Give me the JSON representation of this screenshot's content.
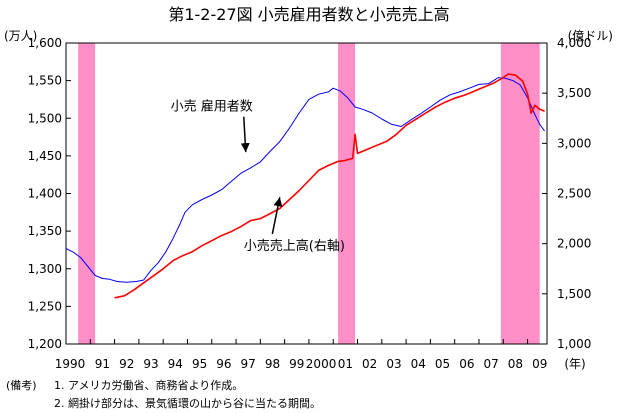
{
  "chart_data": {
    "type": "line",
    "title": "第1-2-27図 小売雇用者数と小売売上高",
    "left_unit": "(万人)",
    "right_unit": "(億ドル)",
    "year_unit": "(年)",
    "x_labels": [
      "1990",
      "91",
      "92",
      "93",
      "94",
      "95",
      "96",
      "97",
      "98",
      "99",
      "2000",
      "01",
      "02",
      "03",
      "04",
      "05",
      "06",
      "07",
      "08",
      "09"
    ],
    "x_range": [
      1990,
      2009.8
    ],
    "y_left": {
      "min": 1200,
      "max": 1600,
      "ticks": [
        "1,200",
        "1,250",
        "1,300",
        "1,350",
        "1,400",
        "1,450",
        "1,500",
        "1,550",
        "1,600"
      ]
    },
    "y_right": {
      "min": 1000,
      "max": 4000,
      "ticks": [
        "1,000",
        "1,500",
        "2,000",
        "2,500",
        "3,000",
        "3,500",
        "4,000"
      ]
    },
    "recessions": [
      [
        1990.5,
        1991.2
      ],
      [
        2001.2,
        2001.9
      ],
      [
        2007.9,
        2009.5
      ]
    ],
    "series": [
      {
        "name": "小売 雇用者数",
        "axis": "left",
        "color": "#0000ff",
        "points": [
          [
            1990.0,
            1327
          ],
          [
            1990.3,
            1322
          ],
          [
            1990.6,
            1315
          ],
          [
            1990.9,
            1303
          ],
          [
            1991.2,
            1291
          ],
          [
            1991.5,
            1287
          ],
          [
            1991.8,
            1286
          ],
          [
            1992.1,
            1283
          ],
          [
            1992.5,
            1282
          ],
          [
            1992.9,
            1283
          ],
          [
            1993.2,
            1285
          ],
          [
            1993.5,
            1298
          ],
          [
            1993.8,
            1308
          ],
          [
            1994.1,
            1322
          ],
          [
            1994.4,
            1340
          ],
          [
            1994.7,
            1360
          ],
          [
            1994.9,
            1375
          ],
          [
            1995.2,
            1385
          ],
          [
            1995.6,
            1392
          ],
          [
            1996.0,
            1398
          ],
          [
            1996.4,
            1405
          ],
          [
            1996.8,
            1416
          ],
          [
            1997.2,
            1427
          ],
          [
            1997.6,
            1434
          ],
          [
            1998.0,
            1442
          ],
          [
            1998.4,
            1456
          ],
          [
            1998.8,
            1469
          ],
          [
            1999.2,
            1487
          ],
          [
            1999.6,
            1507
          ],
          [
            2000.0,
            1525
          ],
          [
            2000.4,
            1532
          ],
          [
            2000.8,
            1535
          ],
          [
            2001.0,
            1540
          ],
          [
            2001.3,
            1536
          ],
          [
            2001.6,
            1527
          ],
          [
            2001.9,
            1515
          ],
          [
            2002.2,
            1512
          ],
          [
            2002.6,
            1507
          ],
          [
            2003.0,
            1499
          ],
          [
            2003.4,
            1492
          ],
          [
            2003.8,
            1489
          ],
          [
            2004.2,
            1498
          ],
          [
            2004.6,
            1506
          ],
          [
            2005.0,
            1515
          ],
          [
            2005.4,
            1524
          ],
          [
            2005.8,
            1531
          ],
          [
            2006.2,
            1535
          ],
          [
            2006.6,
            1540
          ],
          [
            2007.0,
            1545
          ],
          [
            2007.4,
            1546
          ],
          [
            2007.8,
            1554
          ],
          [
            2008.1,
            1553
          ],
          [
            2008.4,
            1550
          ],
          [
            2008.7,
            1544
          ],
          [
            2009.0,
            1527
          ],
          [
            2009.3,
            1505
          ],
          [
            2009.5,
            1492
          ],
          [
            2009.7,
            1483
          ]
        ]
      },
      {
        "name": "小売売上高(右軸)",
        "axis": "right",
        "color": "#ff0000",
        "points": [
          [
            1992.0,
            1460
          ],
          [
            1992.4,
            1480
          ],
          [
            1992.8,
            1540
          ],
          [
            1993.2,
            1610
          ],
          [
            1993.6,
            1680
          ],
          [
            1994.0,
            1750
          ],
          [
            1994.4,
            1830
          ],
          [
            1994.8,
            1880
          ],
          [
            1995.2,
            1920
          ],
          [
            1995.6,
            1980
          ],
          [
            1996.0,
            2030
          ],
          [
            1996.4,
            2080
          ],
          [
            1996.8,
            2120
          ],
          [
            1997.2,
            2170
          ],
          [
            1997.6,
            2230
          ],
          [
            1998.0,
            2250
          ],
          [
            1998.4,
            2300
          ],
          [
            1998.8,
            2350
          ],
          [
            1999.2,
            2440
          ],
          [
            1999.6,
            2530
          ],
          [
            2000.0,
            2630
          ],
          [
            2000.4,
            2730
          ],
          [
            2000.8,
            2780
          ],
          [
            2001.2,
            2820
          ],
          [
            2001.5,
            2830
          ],
          [
            2001.8,
            2850
          ],
          [
            2001.9,
            3090
          ],
          [
            2002.0,
            2900
          ],
          [
            2002.4,
            2940
          ],
          [
            2002.8,
            2980
          ],
          [
            2003.2,
            3020
          ],
          [
            2003.6,
            3090
          ],
          [
            2004.0,
            3180
          ],
          [
            2004.4,
            3240
          ],
          [
            2004.8,
            3300
          ],
          [
            2005.2,
            3360
          ],
          [
            2005.6,
            3410
          ],
          [
            2006.0,
            3450
          ],
          [
            2006.4,
            3480
          ],
          [
            2006.8,
            3520
          ],
          [
            2007.2,
            3560
          ],
          [
            2007.6,
            3600
          ],
          [
            2007.9,
            3640
          ],
          [
            2008.2,
            3690
          ],
          [
            2008.5,
            3680
          ],
          [
            2008.8,
            3620
          ],
          [
            2009.0,
            3490
          ],
          [
            2009.15,
            3300
          ],
          [
            2009.3,
            3380
          ],
          [
            2009.5,
            3340
          ],
          [
            2009.7,
            3320
          ]
        ]
      }
    ],
    "annotations": [
      {
        "text": "小売 雇用者数",
        "label_x": 1996.0,
        "label_y_left": 1510,
        "arrow_to_x": 1997.4,
        "arrow_to_y_left": 1455
      },
      {
        "text": "小売売上高(右軸)",
        "label_x": 1999.4,
        "label_y_left": 1325,
        "arrow_to_x": 1998.8,
        "arrow_to_y_left": 1395
      }
    ]
  },
  "notes": {
    "label": "(備考)",
    "line1": "1. アメリカ労働省、商務省より作成。",
    "line2": "2. 網掛け部分は、景気循環の山から谷に当たる期間。"
  }
}
